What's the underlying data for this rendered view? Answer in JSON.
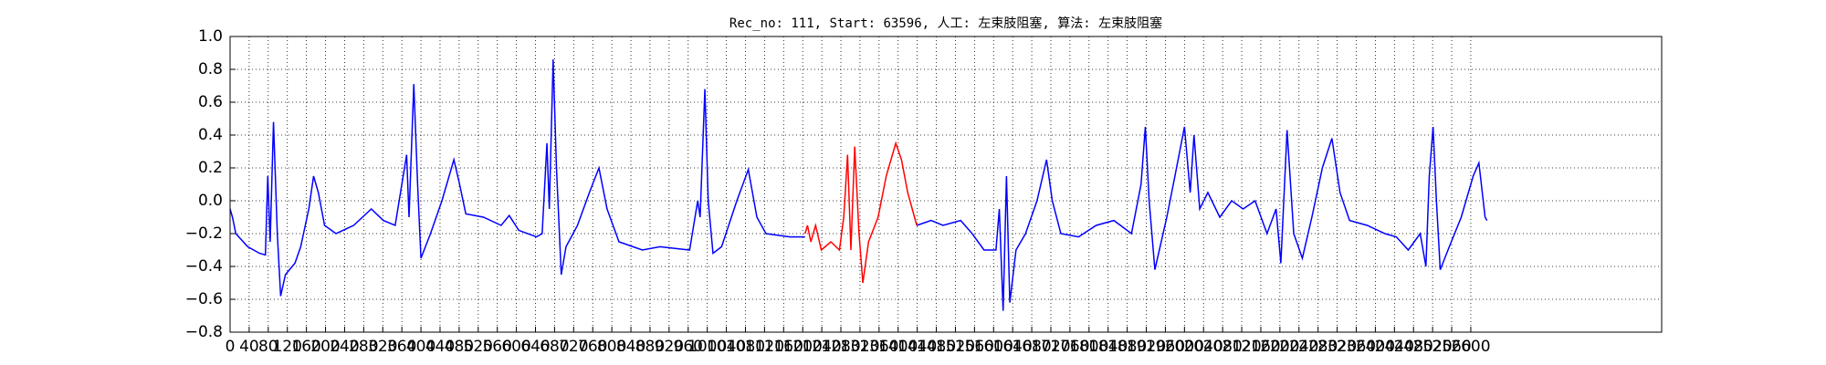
{
  "chart_data": {
    "type": "line",
    "title": "Rec_no: 111, Start: 63596, 人工: 左束肢阻塞, 算法: 左束肢阻塞",
    "xlim": [
      0,
      3000
    ],
    "xticks": [
      0,
      40,
      80,
      120,
      160,
      200,
      240,
      280,
      320,
      360,
      400,
      440,
      480,
      520,
      560,
      600,
      640,
      680,
      720,
      760,
      800,
      840,
      880,
      920,
      960,
      1000,
      1040,
      1080,
      1120,
      1160,
      1200,
      1240,
      1280,
      1320,
      1360,
      1400,
      1440,
      1480,
      1520,
      1560,
      1600,
      1640,
      1680,
      1720,
      1760,
      1800,
      1840,
      1880,
      1920,
      1960,
      2000,
      2040,
      2080,
      2120,
      2160,
      2200,
      2240,
      2280,
      2320,
      2360,
      2400,
      2440,
      2480,
      2520,
      2560,
      2600
    ],
    "ylim": [
      -0.8,
      1.0
    ],
    "yticks": [
      {
        "value": 1.0,
        "label": "1.0"
      },
      0.8,
      0.6,
      0.4,
      0.2,
      {
        "value": 0.0,
        "label": "0.0"
      },
      {
        "value": -0.2,
        "label": "−0.2"
      },
      {
        "value": -0.4,
        "label": "−0.4"
      },
      {
        "value": -0.6,
        "label": "−0.6"
      },
      {
        "value": -0.8,
        "label": "−0.8"
      }
    ],
    "grid": true,
    "series": [
      {
        "color": "#0000ff",
        "x": [
          0,
          5,
          12,
          37,
          62,
          74,
          79,
          84,
          91,
          99,
          106,
          116,
          136,
          148,
          165,
          175,
          185,
          198,
          222,
          259,
          296,
          321,
          346,
          370,
          375,
          385,
          393,
          400,
          420,
          444,
          469,
          481,
          494,
          531,
          568,
          585,
          605,
          642,
          654,
          664,
          669,
          677,
          684,
          694,
          704,
          728,
          753,
          773,
          790,
          815,
          864,
          901,
          963,
          980,
          985,
          995,
          1002,
          1012,
          1030,
          1062,
          1086,
          1104,
          1123,
          1173,
          1205
        ],
        "values": [
          -0.05,
          -0.1,
          -0.2,
          -0.28,
          -0.32,
          -0.33,
          0.15,
          -0.25,
          0.48,
          -0.2,
          -0.58,
          -0.45,
          -0.38,
          -0.28,
          -0.05,
          0.15,
          0.05,
          -0.15,
          -0.2,
          -0.15,
          -0.05,
          -0.12,
          -0.15,
          0.28,
          -0.1,
          0.71,
          0.1,
          -0.35,
          -0.2,
          0.0,
          0.25,
          0.1,
          -0.08,
          -0.1,
          -0.15,
          -0.09,
          -0.18,
          -0.22,
          -0.2,
          0.35,
          -0.05,
          0.86,
          0.2,
          -0.45,
          -0.28,
          -0.15,
          0.05,
          0.2,
          -0.05,
          -0.25,
          -0.3,
          -0.28,
          -0.3,
          0.0,
          -0.1,
          0.68,
          0.0,
          -0.32,
          -0.28,
          0.0,
          0.19,
          -0.1,
          -0.2,
          -0.22,
          -0.22
        ]
      },
      {
        "color": "#ff0000",
        "x": [
          1205,
          1210,
          1217,
          1227,
          1239,
          1259,
          1277,
          1286,
          1294,
          1301,
          1309,
          1318,
          1326,
          1338,
          1358,
          1375,
          1395,
          1407,
          1420,
          1439
        ],
        "values": [
          -0.2,
          -0.15,
          -0.25,
          -0.15,
          -0.3,
          -0.25,
          -0.3,
          -0.1,
          0.28,
          -0.3,
          0.33,
          -0.2,
          -0.5,
          -0.25,
          -0.1,
          0.15,
          0.35,
          0.25,
          0.05,
          -0.15
        ]
      },
      {
        "color": "#0000ff",
        "x": [
          1439,
          1469,
          1494,
          1531,
          1555,
          1580,
          1605,
          1612,
          1620,
          1627,
          1634,
          1647,
          1667,
          1691,
          1711,
          1723,
          1741,
          1778,
          1815,
          1852,
          1889,
          1909,
          1918,
          1926,
          1938,
          1963,
          1980,
          2000,
          2012,
          2020,
          2032,
          2049,
          2074,
          2099,
          2123,
          2148,
          2173,
          2192,
          2202,
          2215,
          2229,
          2247,
          2267,
          2289,
          2309,
          2326,
          2346,
          2383,
          2420,
          2444,
          2469,
          2494,
          2506,
          2513,
          2521,
          2528,
          2536,
          2555,
          2580,
          2605,
          2617,
          2630,
          2634
        ],
        "values": [
          -0.15,
          -0.12,
          -0.15,
          -0.12,
          -0.2,
          -0.3,
          -0.3,
          -0.05,
          -0.67,
          0.15,
          -0.62,
          -0.3,
          -0.2,
          0.0,
          0.25,
          0.0,
          -0.2,
          -0.22,
          -0.15,
          -0.12,
          -0.2,
          0.1,
          0.45,
          0.0,
          -0.42,
          -0.1,
          0.15,
          0.45,
          0.05,
          0.4,
          -0.05,
          0.05,
          -0.1,
          0.0,
          -0.05,
          0.0,
          -0.2,
          -0.05,
          -0.38,
          0.43,
          -0.2,
          -0.35,
          -0.1,
          0.2,
          0.38,
          0.05,
          -0.12,
          -0.15,
          -0.2,
          -0.22,
          -0.3,
          -0.2,
          -0.4,
          0.15,
          0.45,
          0.0,
          -0.42,
          -0.28,
          -0.1,
          0.15,
          0.23,
          -0.1,
          -0.12
        ]
      }
    ]
  }
}
